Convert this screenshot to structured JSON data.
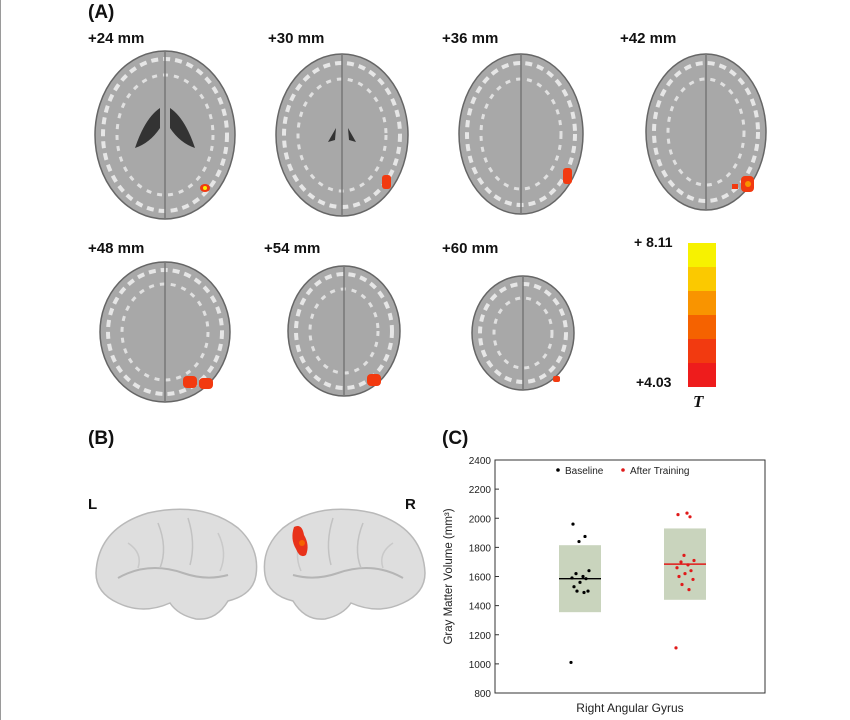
{
  "panels": {
    "a": "(A)",
    "b": "(B)",
    "c": "(C)"
  },
  "slices": [
    {
      "label": "+24 mm"
    },
    {
      "label": "+30 mm"
    },
    {
      "label": "+36 mm"
    },
    {
      "label": "+42 mm"
    },
    {
      "label": "+48 mm"
    },
    {
      "label": "+54 mm"
    },
    {
      "label": "+60 mm"
    }
  ],
  "colorbar": {
    "max": "+ 8.11",
    "min": "+4.03",
    "stat": "T",
    "colors": [
      "#f7f200",
      "#fbc900",
      "#f99400",
      "#f56200",
      "#f23a10",
      "#ee1c1c"
    ]
  },
  "hemispheres": {
    "left": "L",
    "right": "R"
  },
  "chart_data": {
    "type": "scatter",
    "xlabel": "Right Angular Gyrus",
    "ylabel": "Gray Matter Volume (mm³)",
    "ylim": [
      800,
      2400
    ],
    "yticks": [
      "800",
      "1000",
      "1200",
      "1400",
      "1600",
      "1800",
      "2000",
      "2200",
      "2400"
    ],
    "legend_position": "top",
    "series": [
      {
        "name": "Baseline",
        "color": "#000000",
        "fill": "#c9d4bd",
        "mean": 1585,
        "box": [
          1355,
          1815
        ],
        "points": [
          1010,
          1490,
          1500,
          1500,
          1530,
          1560,
          1585,
          1590,
          1600,
          1620,
          1640,
          1840,
          1875,
          1960
        ]
      },
      {
        "name": "After Training",
        "color": "#e01a1a",
        "fill": "#c9d4bd",
        "mean": 1685,
        "box": [
          1440,
          1930
        ],
        "points": [
          1110,
          1510,
          1545,
          1580,
          1600,
          1620,
          1640,
          1660,
          1680,
          1700,
          1710,
          1745,
          2010,
          2025,
          2035
        ]
      }
    ]
  }
}
